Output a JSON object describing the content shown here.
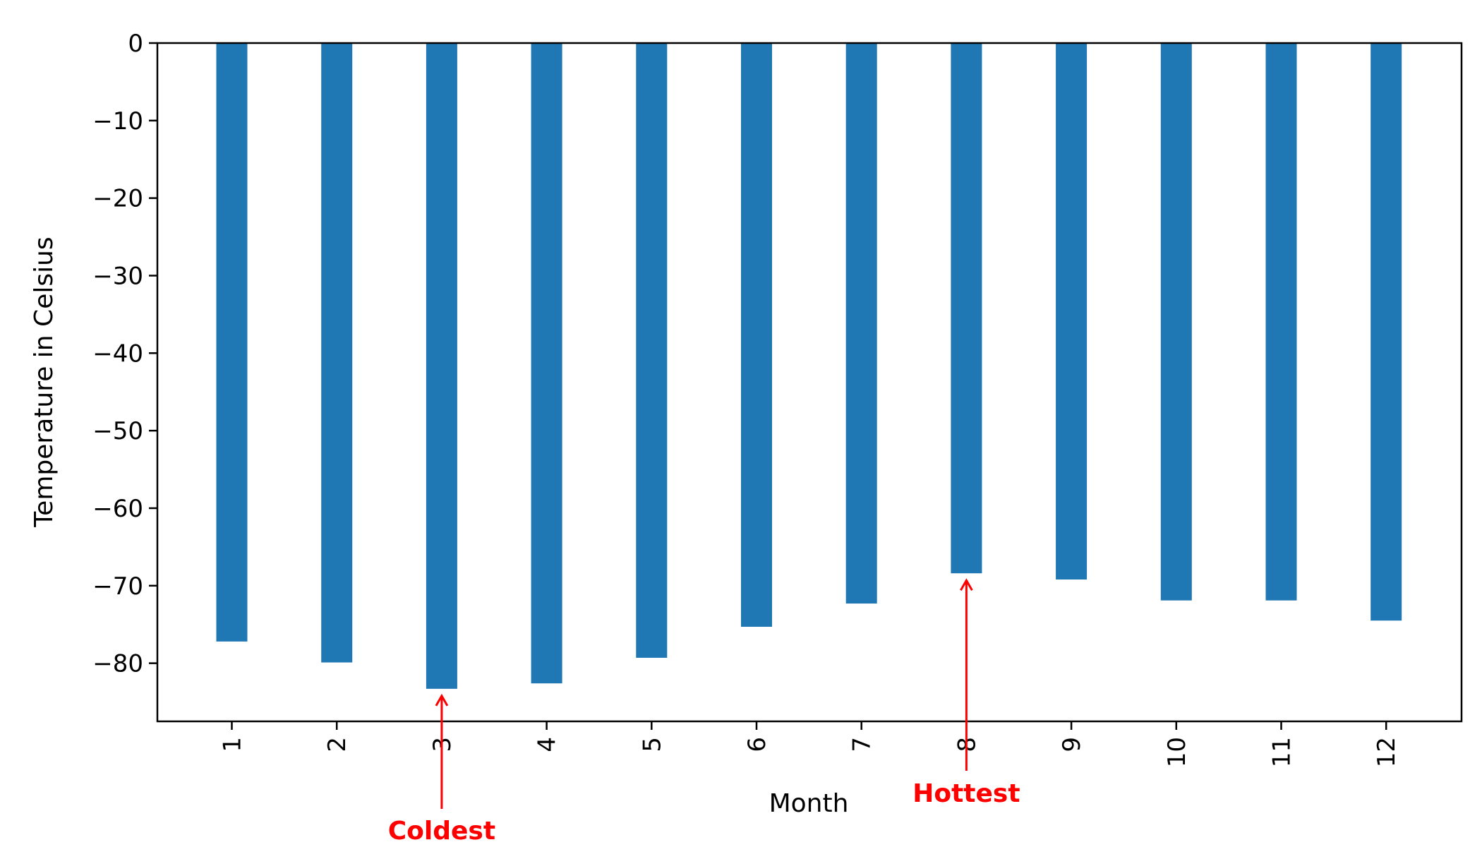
{
  "chart_data": {
    "type": "bar",
    "categories": [
      "1",
      "2",
      "3",
      "4",
      "5",
      "6",
      "7",
      "8",
      "9",
      "10",
      "11",
      "12"
    ],
    "values": [
      -77.2,
      -79.9,
      -83.3,
      -82.6,
      -79.3,
      -75.3,
      -72.3,
      -68.4,
      -69.2,
      -71.9,
      -71.9,
      -74.5
    ],
    "xlabel": "Month",
    "ylabel": "Temperature in Celsius",
    "ylim": [
      -87.5,
      0
    ],
    "yticks": [
      0,
      -10,
      -20,
      -30,
      -40,
      -50,
      -60,
      -70,
      -80
    ],
    "ytick_labels": [
      "0",
      "−10",
      "−20",
      "−30",
      "−40",
      "−50",
      "−60",
      "−70",
      "−80"
    ],
    "bar_color": "#1f77b4",
    "grid": false,
    "annotations": [
      {
        "name": "coldest",
        "text": "Coldest",
        "category": "3",
        "value": -83.3,
        "color": "#ff0000"
      },
      {
        "name": "hottest",
        "text": "Hottest",
        "category": "8",
        "value": -68.4,
        "color": "#ff0000"
      }
    ]
  }
}
